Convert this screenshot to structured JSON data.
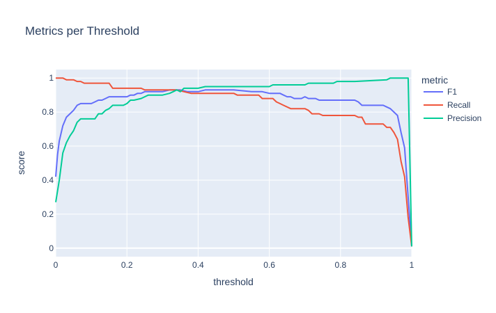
{
  "chart_data": {
    "type": "line",
    "title": "Metrics per Threshold",
    "xlabel": "threshold",
    "ylabel": "score",
    "xlim": [
      0,
      1
    ],
    "ylim": [
      -0.05,
      1.05
    ],
    "xticks": [
      0,
      0.2,
      0.4,
      0.6,
      0.8,
      1
    ],
    "xtick_labels": [
      "0",
      "0.2",
      "0.4",
      "0.6",
      "0.8",
      "1"
    ],
    "yticks": [
      0,
      0.2,
      0.4,
      0.6,
      0.8,
      1
    ],
    "ytick_labels": [
      "0",
      "0.2",
      "0.4",
      "0.6",
      "0.8",
      "1"
    ],
    "grid": true,
    "legend_title": "metric",
    "legend_position": "right",
    "colors": {
      "plot_bg": "#e5ecf6",
      "grid": "#ffffff",
      "text": "#2a3f5f"
    },
    "series": [
      {
        "name": "F1",
        "color": "#636efa",
        "x": [
          0,
          0.005,
          0.01,
          0.02,
          0.03,
          0.04,
          0.05,
          0.06,
          0.07,
          0.08,
          0.1,
          0.11,
          0.12,
          0.13,
          0.14,
          0.15,
          0.16,
          0.18,
          0.19,
          0.2,
          0.21,
          0.22,
          0.23,
          0.24,
          0.25,
          0.26,
          0.3,
          0.32,
          0.33,
          0.35,
          0.37,
          0.4,
          0.42,
          0.5,
          0.55,
          0.58,
          0.6,
          0.62,
          0.63,
          0.64,
          0.65,
          0.66,
          0.67,
          0.68,
          0.69,
          0.7,
          0.71,
          0.72,
          0.73,
          0.74,
          0.75,
          0.76,
          0.8,
          0.81,
          0.84,
          0.85,
          0.86,
          0.87,
          0.88,
          0.9,
          0.92,
          0.93,
          0.94,
          0.95,
          0.96,
          0.97,
          0.98,
          0.99,
          1
        ],
        "y": [
          0.42,
          0.55,
          0.63,
          0.72,
          0.77,
          0.79,
          0.81,
          0.84,
          0.85,
          0.85,
          0.85,
          0.86,
          0.87,
          0.87,
          0.88,
          0.89,
          0.89,
          0.89,
          0.89,
          0.89,
          0.9,
          0.9,
          0.91,
          0.91,
          0.92,
          0.92,
          0.92,
          0.93,
          0.93,
          0.93,
          0.92,
          0.92,
          0.93,
          0.93,
          0.92,
          0.92,
          0.91,
          0.91,
          0.91,
          0.9,
          0.89,
          0.89,
          0.88,
          0.88,
          0.88,
          0.89,
          0.88,
          0.88,
          0.88,
          0.87,
          0.87,
          0.87,
          0.87,
          0.87,
          0.87,
          0.86,
          0.84,
          0.84,
          0.84,
          0.84,
          0.84,
          0.83,
          0.82,
          0.8,
          0.78,
          0.68,
          0.59,
          0.3,
          0.01
        ]
      },
      {
        "name": "Recall",
        "color": "#ef553b",
        "x": [
          0,
          0.005,
          0.02,
          0.03,
          0.04,
          0.05,
          0.06,
          0.07,
          0.08,
          0.1,
          0.14,
          0.15,
          0.16,
          0.24,
          0.25,
          0.34,
          0.36,
          0.38,
          0.5,
          0.51,
          0.57,
          0.58,
          0.61,
          0.62,
          0.63,
          0.64,
          0.66,
          0.67,
          0.7,
          0.71,
          0.72,
          0.74,
          0.75,
          0.76,
          0.78,
          0.84,
          0.85,
          0.86,
          0.87,
          0.88,
          0.89,
          0.9,
          0.92,
          0.93,
          0.94,
          0.95,
          0.96,
          0.97,
          0.98,
          0.99,
          1
        ],
        "y": [
          1.0,
          1.0,
          1.0,
          0.99,
          0.99,
          0.99,
          0.98,
          0.98,
          0.97,
          0.97,
          0.97,
          0.97,
          0.94,
          0.94,
          0.93,
          0.93,
          0.92,
          0.91,
          0.91,
          0.9,
          0.9,
          0.88,
          0.88,
          0.86,
          0.85,
          0.84,
          0.82,
          0.82,
          0.82,
          0.81,
          0.79,
          0.79,
          0.78,
          0.78,
          0.78,
          0.78,
          0.77,
          0.77,
          0.73,
          0.73,
          0.73,
          0.73,
          0.73,
          0.71,
          0.71,
          0.68,
          0.64,
          0.51,
          0.42,
          0.18,
          0.01
        ]
      },
      {
        "name": "Precision",
        "color": "#00cc96",
        "x": [
          0,
          0.01,
          0.02,
          0.03,
          0.04,
          0.05,
          0.06,
          0.07,
          0.08,
          0.1,
          0.11,
          0.12,
          0.13,
          0.14,
          0.15,
          0.16,
          0.19,
          0.2,
          0.21,
          0.22,
          0.24,
          0.25,
          0.26,
          0.3,
          0.32,
          0.33,
          0.34,
          0.35,
          0.36,
          0.38,
          0.4,
          0.42,
          0.6,
          0.61,
          0.69,
          0.7,
          0.71,
          0.72,
          0.78,
          0.79,
          0.8,
          0.84,
          0.93,
          0.94,
          0.99,
          1
        ],
        "y": [
          0.27,
          0.4,
          0.56,
          0.62,
          0.66,
          0.69,
          0.74,
          0.76,
          0.76,
          0.76,
          0.76,
          0.79,
          0.79,
          0.81,
          0.82,
          0.84,
          0.84,
          0.85,
          0.87,
          0.87,
          0.88,
          0.89,
          0.9,
          0.9,
          0.91,
          0.92,
          0.93,
          0.92,
          0.94,
          0.94,
          0.94,
          0.95,
          0.95,
          0.96,
          0.96,
          0.96,
          0.97,
          0.97,
          0.97,
          0.98,
          0.98,
          0.98,
          0.99,
          1.0,
          1.0,
          0.01
        ]
      }
    ]
  }
}
